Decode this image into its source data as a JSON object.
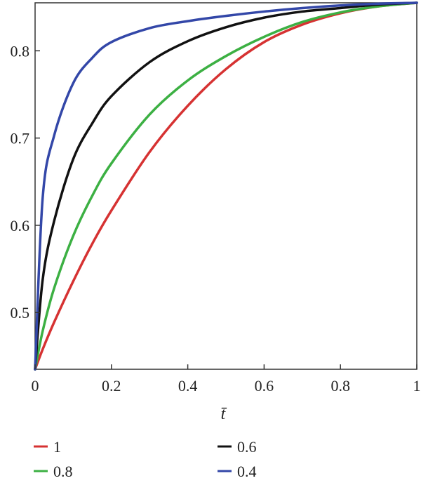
{
  "chart_data": {
    "type": "line",
    "xlabel": "t̄",
    "ylabel": "",
    "xlim": [
      0,
      1
    ],
    "ylim": [
      0.435,
      0.855
    ],
    "x_ticks": [
      0,
      0.2,
      0.4,
      0.6,
      0.8,
      1
    ],
    "x_tick_labels": [
      "0",
      "0.2",
      "0.4",
      "0.6",
      "0.8",
      "1"
    ],
    "y_ticks": [
      0.5,
      0.6,
      0.7,
      0.8
    ],
    "y_tick_labels": [
      "0.5",
      "0.6",
      "0.7",
      "0.8"
    ],
    "grid": false,
    "legend_position": "bottom",
    "x": [
      0,
      0.02,
      0.05,
      0.1,
      0.15,
      0.2,
      0.3,
      0.4,
      0.5,
      0.6,
      0.7,
      0.8,
      0.9,
      1.0
    ],
    "series": [
      {
        "name": "1",
        "color": "#d63232",
        "values": [
          0.435,
          0.458,
          0.489,
          0.536,
          0.579,
          0.617,
          0.684,
          0.737,
          0.779,
          0.81,
          0.83,
          0.843,
          0.851,
          0.855
        ]
      },
      {
        "name": "0.6",
        "color": "#111111",
        "values": [
          0.435,
          0.538,
          0.605,
          0.676,
          0.717,
          0.748,
          0.787,
          0.811,
          0.827,
          0.838,
          0.845,
          0.849,
          0.853,
          0.855
        ]
      },
      {
        "name": "0.8",
        "color": "#3cb043",
        "values": [
          0.435,
          0.479,
          0.528,
          0.588,
          0.634,
          0.671,
          0.727,
          0.766,
          0.794,
          0.816,
          0.833,
          0.844,
          0.851,
          0.855
        ]
      },
      {
        "name": "0.4",
        "color": "#3347a8",
        "values": [
          0.435,
          0.632,
          0.703,
          0.763,
          0.792,
          0.81,
          0.826,
          0.834,
          0.84,
          0.845,
          0.849,
          0.852,
          0.854,
          0.855
        ]
      }
    ]
  }
}
